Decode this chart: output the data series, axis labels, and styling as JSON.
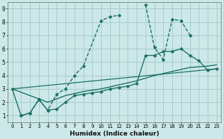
{
  "xlabel": "Humidex (Indice chaleur)",
  "bg_color": "#cce8e8",
  "grid_color": "#a8cccc",
  "line_color": "#1a7060",
  "xlim": [
    -0.5,
    23.5
  ],
  "ylim": [
    0.5,
    9.5
  ],
  "xticks": [
    0,
    1,
    2,
    3,
    4,
    5,
    6,
    7,
    8,
    9,
    10,
    11,
    12,
    13,
    14,
    15,
    16,
    17,
    18,
    19,
    20,
    21,
    22,
    23
  ],
  "yticks": [
    1,
    2,
    3,
    4,
    5,
    6,
    7,
    8,
    9
  ],
  "series": [
    {
      "x": [
        1,
        2,
        3,
        4,
        5,
        6,
        7,
        8,
        10,
        11,
        12,
        13,
        15,
        16,
        17,
        18,
        19,
        20
      ],
      "y": [
        1.0,
        1.2,
        2.2,
        1.4,
        2.6,
        3.0,
        4.0,
        4.7,
        8.1,
        8.4,
        8.5,
        null,
        9.3,
        6.1,
        5.2,
        8.2,
        8.1,
        7.0
      ],
      "has_markers": true,
      "linewidth": 1.0,
      "linestyle": "--"
    },
    {
      "x": [
        0,
        1,
        2,
        3,
        4,
        5,
        6,
        7,
        8,
        9,
        10,
        11,
        12,
        13,
        14,
        15,
        16,
        17,
        18,
        19,
        20,
        21,
        22,
        23
      ],
      "y": [
        3.0,
        1.0,
        1.2,
        2.2,
        1.4,
        1.5,
        2.0,
        2.5,
        2.6,
        2.7,
        2.8,
        3.0,
        3.1,
        3.2,
        3.4,
        5.5,
        5.5,
        5.8,
        5.8,
        6.0,
        5.5,
        5.1,
        4.4,
        4.5
      ],
      "has_markers": true,
      "linewidth": 1.0,
      "linestyle": "-"
    },
    {
      "x": [
        0,
        4,
        6,
        8,
        10,
        12,
        14,
        16,
        18,
        20,
        22,
        23
      ],
      "y": [
        3.0,
        2.0,
        2.5,
        2.8,
        3.0,
        3.3,
        3.6,
        4.0,
        4.3,
        4.6,
        4.7,
        4.8
      ],
      "has_markers": false,
      "linewidth": 1.0,
      "linestyle": "-"
    },
    {
      "x": [
        0,
        23
      ],
      "y": [
        3.0,
        4.5
      ],
      "has_markers": false,
      "linewidth": 0.9,
      "linestyle": "-"
    }
  ]
}
